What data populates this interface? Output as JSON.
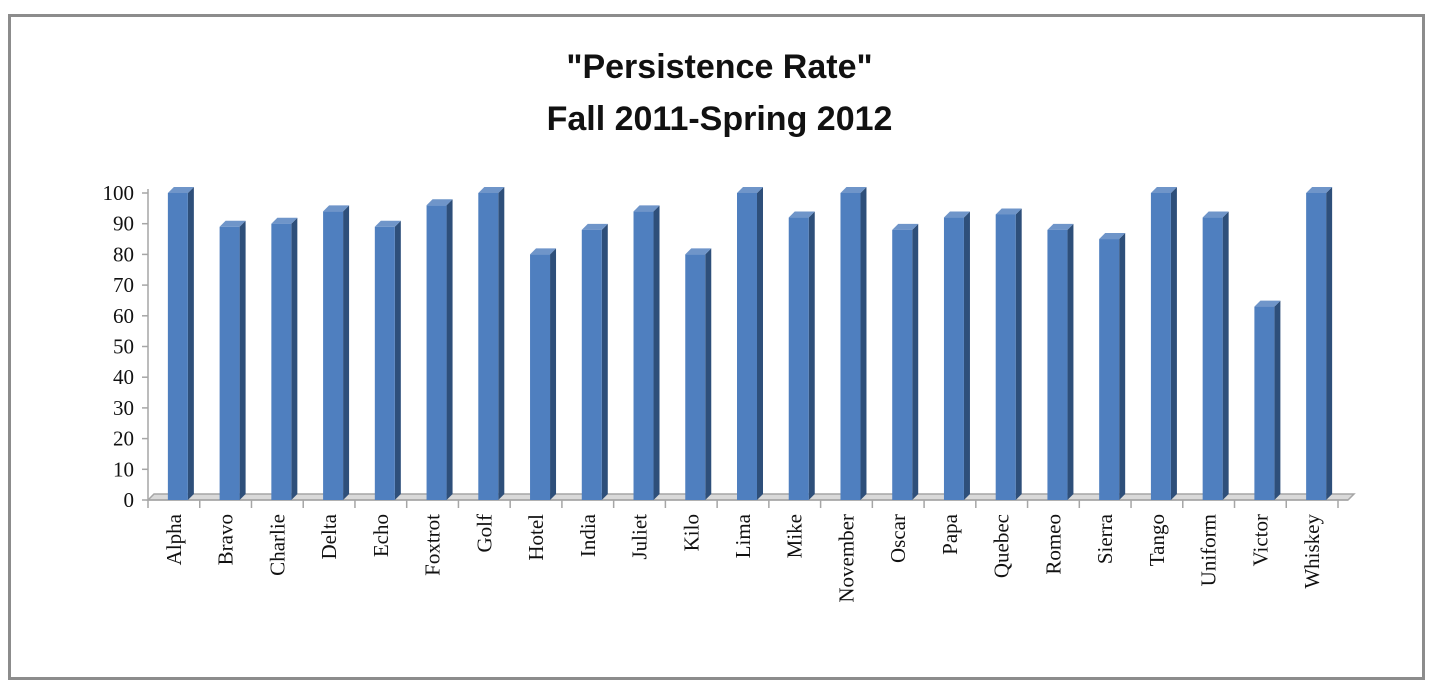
{
  "chart_data": {
    "type": "bar",
    "title_line1": "\"Persistence Rate\"",
    "title_line2": "Fall 2011-Spring 2012",
    "xlabel": "",
    "ylabel": "",
    "ylim": [
      0,
      100
    ],
    "yticks": [
      0,
      10,
      20,
      30,
      40,
      50,
      60,
      70,
      80,
      90,
      100
    ],
    "grid": false,
    "legend": "none",
    "categories": [
      "Alpha",
      "Bravo",
      "Charlie",
      "Delta",
      "Echo",
      "Foxtrot",
      "Golf",
      "Hotel",
      "India",
      "Juliet",
      "Kilo",
      "Lima",
      "Mike",
      "November",
      "Oscar",
      "Papa",
      "Quebec",
      "Romeo",
      "Sierra",
      "Tango",
      "Uniform",
      "Victor",
      "Whiskey"
    ],
    "values": [
      100,
      89,
      90,
      94,
      89,
      96,
      100,
      80,
      88,
      94,
      80,
      100,
      92,
      100,
      88,
      92,
      93,
      88,
      85,
      100,
      92,
      63,
      100
    ],
    "colors": {
      "bar_front": "#4f7fbf",
      "bar_side": "#2e4f7a",
      "bar_top": "#6f95c9",
      "axis": "#a6a6a6"
    }
  }
}
